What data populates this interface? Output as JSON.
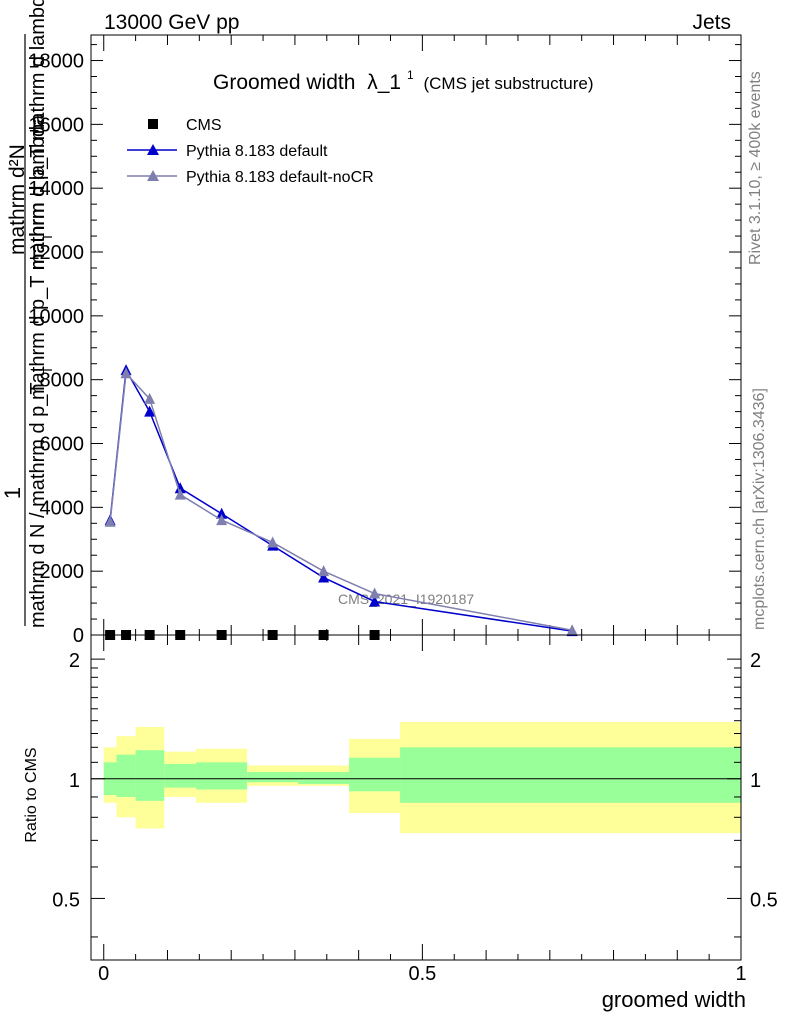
{
  "header": {
    "energy": "13000 GeV pp",
    "category": "Jets"
  },
  "side_text": {
    "rivet": "Rivet 3.1.10, ≥ 400k events",
    "mcplots": "mcplots.cern.ch [arXiv:1306.3436]"
  },
  "chart_data": [
    {
      "type": "line",
      "title": "Groomed width",
      "title_symbol": "λ_1",
      "title_sup": "1",
      "subtitle": "(CMS jet substructure)",
      "watermark": "CMS_2021_I1920187",
      "ylabel": {
        "numerator": "1",
        "denominator": "mathrm d N / mathrm d p_T",
        "fraction_numerator": "mathrm d²N",
        "fraction_denominator_1": "mathrm d p_T mathrm d lambda",
        "fraction_denominator_2": "mathrm d p_T mathrm d lambda",
        "sub_T": "T"
      },
      "ylim": [
        0,
        18800
      ],
      "xlim": [
        -0.02,
        1.0
      ],
      "yticks": [
        0,
        2000,
        4000,
        6000,
        8000,
        10000,
        12000,
        14000,
        16000,
        18000
      ],
      "ytick_labels": [
        "0",
        "2000",
        "4000",
        "6000",
        "8000",
        "10000",
        "12000",
        "14000",
        "16000",
        "18000"
      ],
      "legend": [
        {
          "label": "CMS",
          "color": "#000000",
          "marker": "square"
        },
        {
          "label": "Pythia 8.183 default",
          "color": "#0000cc",
          "marker": "triangle"
        },
        {
          "label": "Pythia 8.183 default-noCR",
          "color": "#7f7faf",
          "marker": "triangle"
        }
      ],
      "series": [
        {
          "name": "CMS",
          "color": "#000000",
          "x": [
            0.01,
            0.035,
            0.072,
            0.12,
            0.185,
            0.265,
            0.345,
            0.425
          ],
          "y": [
            0,
            0,
            0,
            0,
            0,
            0,
            0,
            0
          ]
        },
        {
          "name": "Pythia 8.183 default",
          "color": "#0000cc",
          "x": [
            0.01,
            0.035,
            0.072,
            0.12,
            0.185,
            0.265,
            0.345,
            0.425,
            0.735
          ],
          "y": [
            3600,
            8300,
            7000,
            4600,
            3800,
            2800,
            1800,
            1050,
            120
          ]
        },
        {
          "name": "Pythia 8.183 default-noCR",
          "color": "#7f7faf",
          "x": [
            0.01,
            0.035,
            0.072,
            0.12,
            0.185,
            0.265,
            0.345,
            0.425,
            0.735
          ],
          "y": [
            3550,
            8200,
            7400,
            4400,
            3600,
            2900,
            2000,
            1300,
            150
          ]
        }
      ]
    },
    {
      "type": "area",
      "ylabel": "Ratio to CMS",
      "xlabel": "groomed width",
      "ylim": [
        0.35,
        2.3
      ],
      "xlim": [
        -0.02,
        1.0
      ],
      "yticks": [
        0.5,
        1,
        2
      ],
      "ytick_labels": [
        "0.5",
        "1",
        "2"
      ],
      "xticks": [
        0,
        0.5,
        1
      ],
      "xtick_labels": [
        "0",
        "0.5",
        "1"
      ],
      "bins": [
        {
          "x0": 0.0,
          "x1": 0.02,
          "inner": [
            0.91,
            1.1
          ],
          "outer": [
            0.87,
            1.2
          ]
        },
        {
          "x0": 0.02,
          "x1": 0.05,
          "inner": [
            0.9,
            1.15
          ],
          "outer": [
            0.8,
            1.28
          ]
        },
        {
          "x0": 0.05,
          "x1": 0.095,
          "inner": [
            0.88,
            1.18
          ],
          "outer": [
            0.75,
            1.35
          ]
        },
        {
          "x0": 0.095,
          "x1": 0.145,
          "inner": [
            0.95,
            1.09
          ],
          "outer": [
            0.9,
            1.17
          ]
        },
        {
          "x0": 0.145,
          "x1": 0.225,
          "inner": [
            0.94,
            1.1
          ],
          "outer": [
            0.87,
            1.19
          ]
        },
        {
          "x0": 0.225,
          "x1": 0.305,
          "inner": [
            0.98,
            1.04
          ],
          "outer": [
            0.96,
            1.08
          ]
        },
        {
          "x0": 0.305,
          "x1": 0.385,
          "inner": [
            0.97,
            1.04
          ],
          "outer": [
            0.96,
            1.08
          ]
        },
        {
          "x0": 0.385,
          "x1": 0.465,
          "inner": [
            0.93,
            1.13
          ],
          "outer": [
            0.82,
            1.26
          ]
        },
        {
          "x0": 0.465,
          "x1": 1.0,
          "inner": [
            0.87,
            1.2
          ],
          "outer": [
            0.73,
            1.39
          ]
        }
      ],
      "colors": {
        "inner": "#99ff99",
        "outer": "#ffff99"
      }
    }
  ]
}
